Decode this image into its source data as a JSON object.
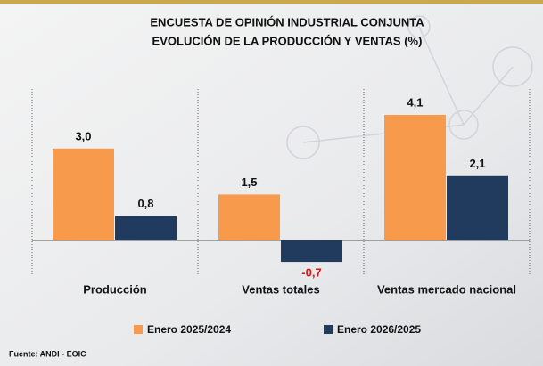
{
  "chart_data": {
    "type": "bar",
    "title": [
      "ENCUESTA DE OPINIÓN INDUSTRIAL CONJUNTA",
      "EVOLUCIÓN DE LA PRODUCCIÓN Y VENTAS (%)"
    ],
    "categories": [
      "Producción",
      "Ventas totales",
      "Ventas mercado nacional"
    ],
    "series": [
      {
        "name": "Enero 2025/2024",
        "color": "#f79a4b",
        "values": [
          3.0,
          1.5,
          4.1
        ],
        "value_labels": [
          "3,0",
          "1,5",
          "4,1"
        ]
      },
      {
        "name": "Enero 2026/2025",
        "color": "#213b5e",
        "values": [
          0.8,
          -0.7,
          2.1
        ],
        "value_labels": [
          "0,8",
          "-0,7",
          "2,1"
        ]
      }
    ],
    "negative_label_color": "#e01010",
    "source": "Fuente: ANDI - EOIC"
  }
}
